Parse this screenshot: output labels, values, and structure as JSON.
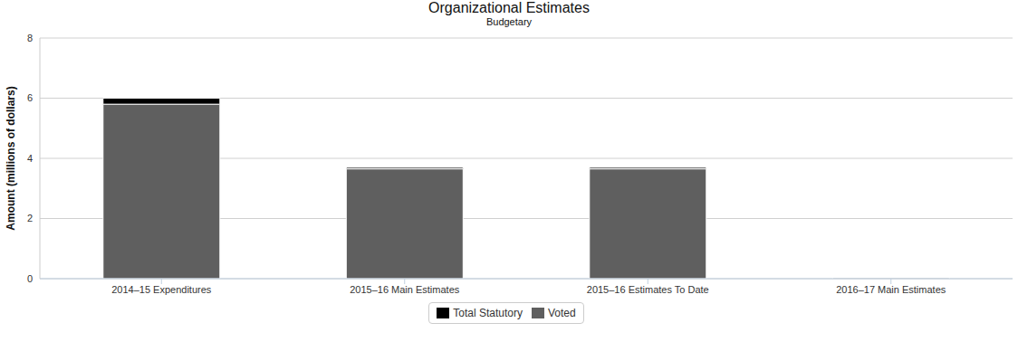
{
  "chart_data": {
    "type": "bar",
    "title": "Organizational Estimates",
    "subtitle": "Budgetary",
    "y_label": "Amount (millions of dollars)",
    "categories": [
      "2014–15 Expenditures",
      "2015–16 Main Estimates",
      "2015–16 Estimates To Date",
      "2016–17 Main Estimates"
    ],
    "series": [
      {
        "name": "Total Statutory",
        "color": "#000000",
        "values": [
          0.2,
          0.05,
          0.05,
          0
        ]
      },
      {
        "name": "Voted",
        "color": "#5f5f5f",
        "values": [
          5.8,
          3.65,
          3.65,
          0.03
        ]
      }
    ],
    "ylim": [
      0,
      8
    ],
    "yticks": [
      0,
      2,
      4,
      6,
      8
    ],
    "grid": true,
    "stacked": true,
    "legend": "bottom"
  }
}
